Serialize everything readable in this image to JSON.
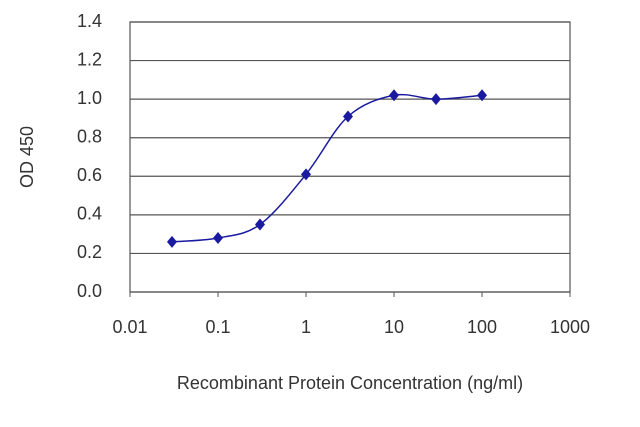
{
  "chart_data": {
    "type": "line",
    "x_label": "Recombinant Protein Concentration (ng/ml)",
    "y_label": "OD 450",
    "xscale": "log",
    "x": [
      0.03,
      0.1,
      0.3,
      1,
      3,
      10,
      30,
      100
    ],
    "series": [
      {
        "color": "#1a1aa0",
        "values": [
          0.26,
          0.28,
          0.35,
          0.61,
          0.91,
          1.02,
          1.0,
          1.02
        ]
      }
    ],
    "xlim": [
      0.01,
      1000
    ],
    "xticks": [
      0.01,
      0.1,
      1,
      10,
      100,
      1000
    ],
    "ylim": [
      0,
      1.4
    ],
    "yticks": [
      {
        "value": 0,
        "label": "0.0"
      },
      0.2,
      0.4,
      0.6,
      0.8,
      {
        "value": 1,
        "label": "1.0"
      },
      1.2,
      1.4
    ],
    "grid": true
  }
}
